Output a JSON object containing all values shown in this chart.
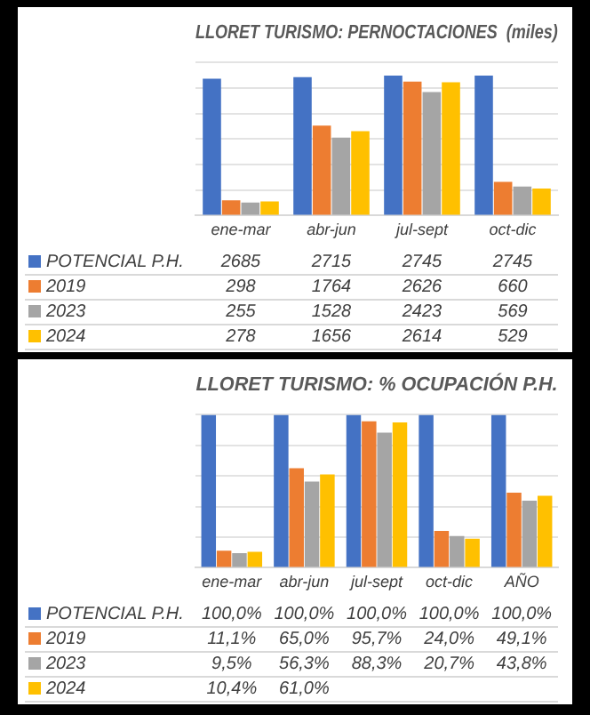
{
  "chart_data": [
    {
      "type": "bar",
      "title": "LLORET TURISMO: PERNOCTACIONES  (miles)",
      "categories": [
        "ene-mar",
        "abr-jun",
        "jul-sept",
        "oct-dic"
      ],
      "series": [
        {
          "name": "POTENCIAL P.H.",
          "color": "#4472c4",
          "values": [
            2685,
            2715,
            2745,
            2745
          ]
        },
        {
          "name": "2019",
          "color": "#ed7d31",
          "values": [
            298,
            1764,
            2626,
            660
          ]
        },
        {
          "name": "2023",
          "color": "#a5a5a5",
          "values": [
            255,
            1528,
            2423,
            569
          ]
        },
        {
          "name": "2024",
          "color": "#ffc000",
          "values": [
            278,
            1656,
            2614,
            529
          ]
        }
      ],
      "ylim": [
        0,
        3000
      ],
      "yticks": [
        {
          "value": 0,
          "label": null
        },
        {
          "value": 500,
          "label": null
        },
        {
          "value": 1000,
          "label": null
        },
        {
          "value": 1500,
          "label": null
        },
        {
          "value": 2000,
          "label": null
        },
        {
          "value": 2500,
          "label": null
        },
        {
          "value": 3000,
          "label": null
        }
      ],
      "tick_labels": "x",
      "grid": "y",
      "legend": "bottom left",
      "data_labels": true
    },
    {
      "type": "bar",
      "title": "LLORET TURISMO: % OCUPACIÓN P.H.",
      "categories": [
        "ene-mar",
        "abr-jun",
        "jul-sept",
        "oct-dic",
        "AÑO"
      ],
      "series": [
        {
          "name": "POTENCIAL P.H.",
          "color": "#4472c4",
          "values": [
            100.0,
            100.0,
            100.0,
            100.0,
            100.0
          ],
          "value_labels": [
            "100,0%",
            "100,0%",
            "100,0%",
            "100,0%",
            "100,0%"
          ]
        },
        {
          "name": "2019",
          "color": "#ed7d31",
          "values": [
            11.1,
            65.0,
            95.7,
            24.0,
            49.1
          ],
          "value_labels": [
            "11,1%",
            "65,0%",
            "95,7%",
            "24,0%",
            "49,1%"
          ]
        },
        {
          "name": "2023",
          "color": "#a5a5a5",
          "values": [
            9.5,
            56.3,
            88.3,
            20.7,
            43.8
          ],
          "value_labels": [
            "9,5%",
            "56,3%",
            "88,3%",
            "20,7%",
            "43,8%"
          ]
        },
        {
          "name": "2024",
          "color": "#ffc000",
          "values": [
            10.4,
            61.0,
            95,
            19,
            47
          ],
          "value_labels": [
            "10,4%",
            "61,0%",
            null,
            null,
            null
          ]
        }
      ],
      "ylim": [
        0,
        100
      ],
      "yticks": [
        {
          "value": 0,
          "label": null
        },
        {
          "value": 20,
          "label": null
        },
        {
          "value": 40,
          "label": null
        },
        {
          "value": 60,
          "label": null
        },
        {
          "value": 80,
          "label": null
        },
        {
          "value": 100,
          "label": null
        }
      ],
      "tick_labels": "x",
      "grid": "y",
      "legend": "bottom left"
    }
  ]
}
